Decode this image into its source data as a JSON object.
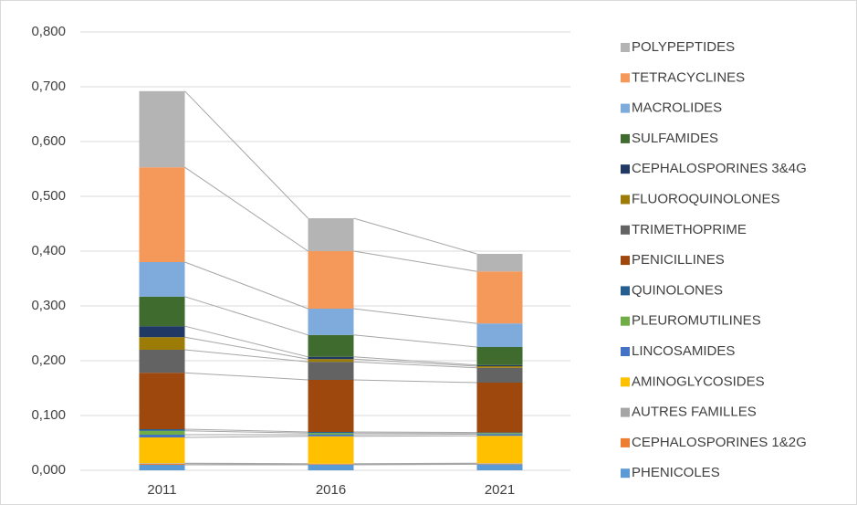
{
  "chart_data": {
    "type": "stacked_bar",
    "categories": [
      "2011",
      "2016",
      "2021"
    ],
    "series": [
      {
        "name": "PHENICOLES",
        "color": "#5b9bd5",
        "values": [
          0.01,
          0.01,
          0.011
        ]
      },
      {
        "name": "CEPHALOSPORINES 1&2G",
        "color": "#ed7d31",
        "values": [
          0.002,
          0.001,
          0.001
        ]
      },
      {
        "name": "AUTRES FAMILLES",
        "color": "#a5a5a5",
        "values": [
          0.001,
          0.001,
          0.001
        ]
      },
      {
        "name": "AMINOGLYCOSIDES",
        "color": "#ffc000",
        "values": [
          0.047,
          0.05,
          0.05
        ]
      },
      {
        "name": "LINCOSAMIDES",
        "color": "#4472c4",
        "values": [
          0.005,
          0.003,
          0.003
        ]
      },
      {
        "name": "PLEUROMUTILINES",
        "color": "#70ad47",
        "values": [
          0.007,
          0.003,
          0.002
        ]
      },
      {
        "name": "QUINOLONES",
        "color": "#255e91",
        "values": [
          0.003,
          0.002,
          0.001
        ]
      },
      {
        "name": "PENICILLINES",
        "color": "#9e480e",
        "values": [
          0.103,
          0.095,
          0.091
        ]
      },
      {
        "name": "TRIMETHOPRIME",
        "color": "#636363",
        "values": [
          0.042,
          0.033,
          0.027
        ]
      },
      {
        "name": "FLUOROQUINOLONES",
        "color": "#9c7c07",
        "values": [
          0.023,
          0.005,
          0.003
        ]
      },
      {
        "name": "CEPHALOSPORINES 3&4G",
        "color": "#1f3864",
        "values": [
          0.02,
          0.004,
          0.002
        ]
      },
      {
        "name": "SULFAMIDES",
        "color": "#3f6b2f",
        "values": [
          0.054,
          0.04,
          0.033
        ]
      },
      {
        "name": "MACROLIDES",
        "color": "#7eaadc",
        "values": [
          0.063,
          0.048,
          0.043
        ]
      },
      {
        "name": "TETRACYCLINES",
        "color": "#f4995a",
        "values": [
          0.173,
          0.105,
          0.095
        ]
      },
      {
        "name": "POLYPEPTIDES",
        "color": "#b4b4b4",
        "values": [
          0.139,
          0.06,
          0.032
        ]
      }
    ],
    "ylim": [
      0,
      0.8
    ],
    "yticks": [
      {
        "value": 0,
        "label": "0,000"
      },
      {
        "value": 0.1,
        "label": "0,100"
      },
      {
        "value": 0.2,
        "label": "0,200"
      },
      {
        "value": 0.3,
        "label": "0,300"
      },
      {
        "value": 0.4,
        "label": "0,400"
      },
      {
        "value": 0.5,
        "label": "0,500"
      },
      {
        "value": 0.6,
        "label": "0,600"
      },
      {
        "value": 0.7,
        "label": "0,700"
      },
      {
        "value": 0.8,
        "label": "0,800"
      }
    ],
    "grid": true,
    "legend": "right"
  }
}
